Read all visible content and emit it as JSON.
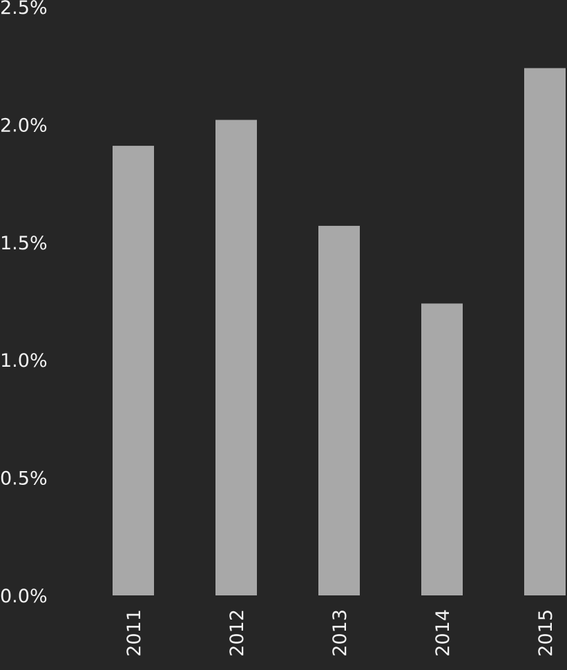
{
  "chart_data": {
    "type": "bar",
    "categories": [
      "2011",
      "2012",
      "2013",
      "2014",
      "2015"
    ],
    "values": [
      1.91,
      2.02,
      1.57,
      1.24,
      2.24
    ],
    "y_ticks": [
      "0.0%",
      "0.5%",
      "1.0%",
      "1.5%",
      "2.0%",
      "2.5%"
    ],
    "y_tick_values": [
      0,
      0.5,
      1.0,
      1.5,
      2.0,
      2.5
    ],
    "ylim": [
      0,
      2.5
    ],
    "value_suffix": "%",
    "title": "",
    "xlabel": "",
    "ylabel": "",
    "grid": false,
    "legend": "none",
    "x_label_orientation": "vertical",
    "colors": {
      "background": "#262626",
      "bar": "#a8a8a8",
      "text": "#f2f2f2"
    }
  }
}
